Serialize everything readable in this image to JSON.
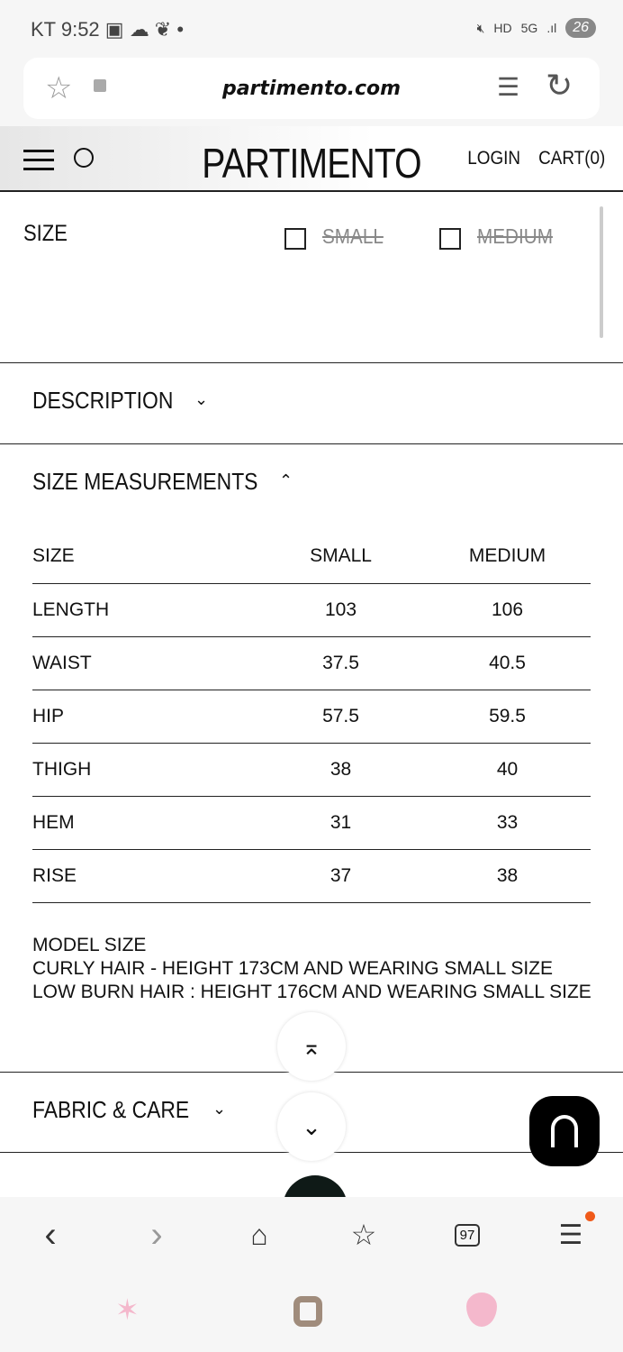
{
  "status": {
    "carrier": "KT",
    "time": "9:52",
    "battery": "26"
  },
  "browser": {
    "url": "partimento.com",
    "tab_count": "97"
  },
  "header": {
    "logo": "PARTIMENTO",
    "login": "LOGIN",
    "cart": "CART(0)"
  },
  "size_selector": {
    "label": "SIZE",
    "options": [
      {
        "label": "SMALL",
        "available": false
      },
      {
        "label": "MEDIUM",
        "available": false
      }
    ]
  },
  "sections": {
    "description": "DESCRIPTION",
    "size_measurements": "SIZE MEASUREMENTS",
    "fabric": "FABRIC & CARE"
  },
  "table": {
    "headers": [
      "SIZE",
      "SMALL",
      "MEDIUM"
    ],
    "rows": [
      [
        "LENGTH",
        "103",
        "106"
      ],
      [
        "WAIST",
        "37.5",
        "40.5"
      ],
      [
        "HIP",
        "57.5",
        "59.5"
      ],
      [
        "THIGH",
        "38",
        "40"
      ],
      [
        "HEM",
        "31",
        "33"
      ],
      [
        "RISE",
        "37",
        "38"
      ]
    ]
  },
  "model": {
    "line1": "MODEL SIZE",
    "line2": "CURLY HAIR - HEIGHT 173CM AND WEARING SMALL SIZE",
    "line3": "LOW BURN HAIR : HEIGHT 176CM AND WEARING SMALL SIZE"
  },
  "colors": {
    "notification_dot": "#f05a1a",
    "chat_bg": "#000000"
  }
}
